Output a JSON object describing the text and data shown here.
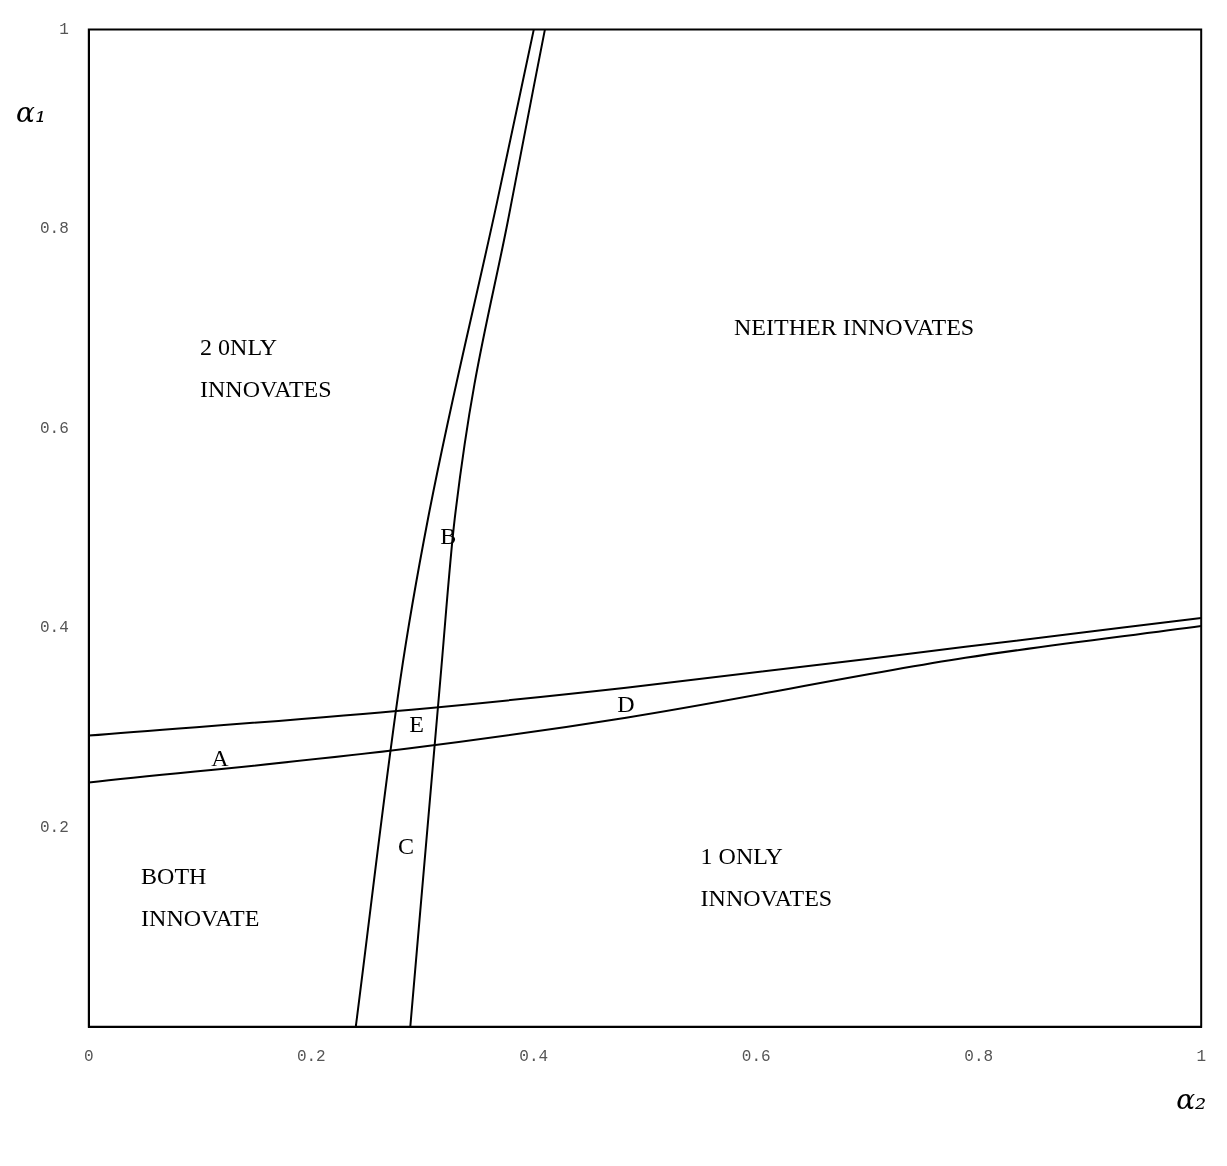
{
  "chart_data": {
    "type": "line",
    "xlabel": "α₂",
    "ylabel": "α₁",
    "xlim": [
      0,
      1
    ],
    "ylim": [
      0,
      1
    ],
    "xticks": [
      0,
      0.2,
      0.4,
      0.6,
      0.8,
      1
    ],
    "yticks": [
      0.2,
      0.4,
      0.6,
      0.8,
      1
    ],
    "grid": false,
    "legend": false,
    "marker": "none",
    "line_style": "solid",
    "series": [
      {
        "color": "#000000",
        "x": [
          0.24,
          0.28,
          0.305,
          0.367,
          0.4
        ],
        "values": [
          0,
          0.348,
          0.51,
          0.827,
          1
        ]
      },
      {
        "color": "#000000",
        "x": [
          0.289,
          0.316,
          0.329,
          0.38,
          0.41
        ],
        "values": [
          0,
          0.348,
          0.51,
          0.827,
          1
        ]
      },
      {
        "color": "#000000",
        "x": [
          0,
          0.29,
          0.483,
          0.788,
          1
        ],
        "values": [
          0.292,
          0.318,
          0.34,
          0.381,
          0.41
        ]
      },
      {
        "color": "#000000",
        "x": [
          0,
          0.287,
          0.483,
          0.788,
          1
        ],
        "values": [
          0.245,
          0.279,
          0.31,
          0.37,
          0.402
        ]
      }
    ],
    "annotations": [
      "2 0NLY\nINNOVATES",
      "NEITHER INNOVATES",
      "BOTH\nINNOVATE",
      "1 ONLY\nINNOVATES",
      "A",
      "B",
      "C",
      "D",
      "E"
    ]
  }
}
